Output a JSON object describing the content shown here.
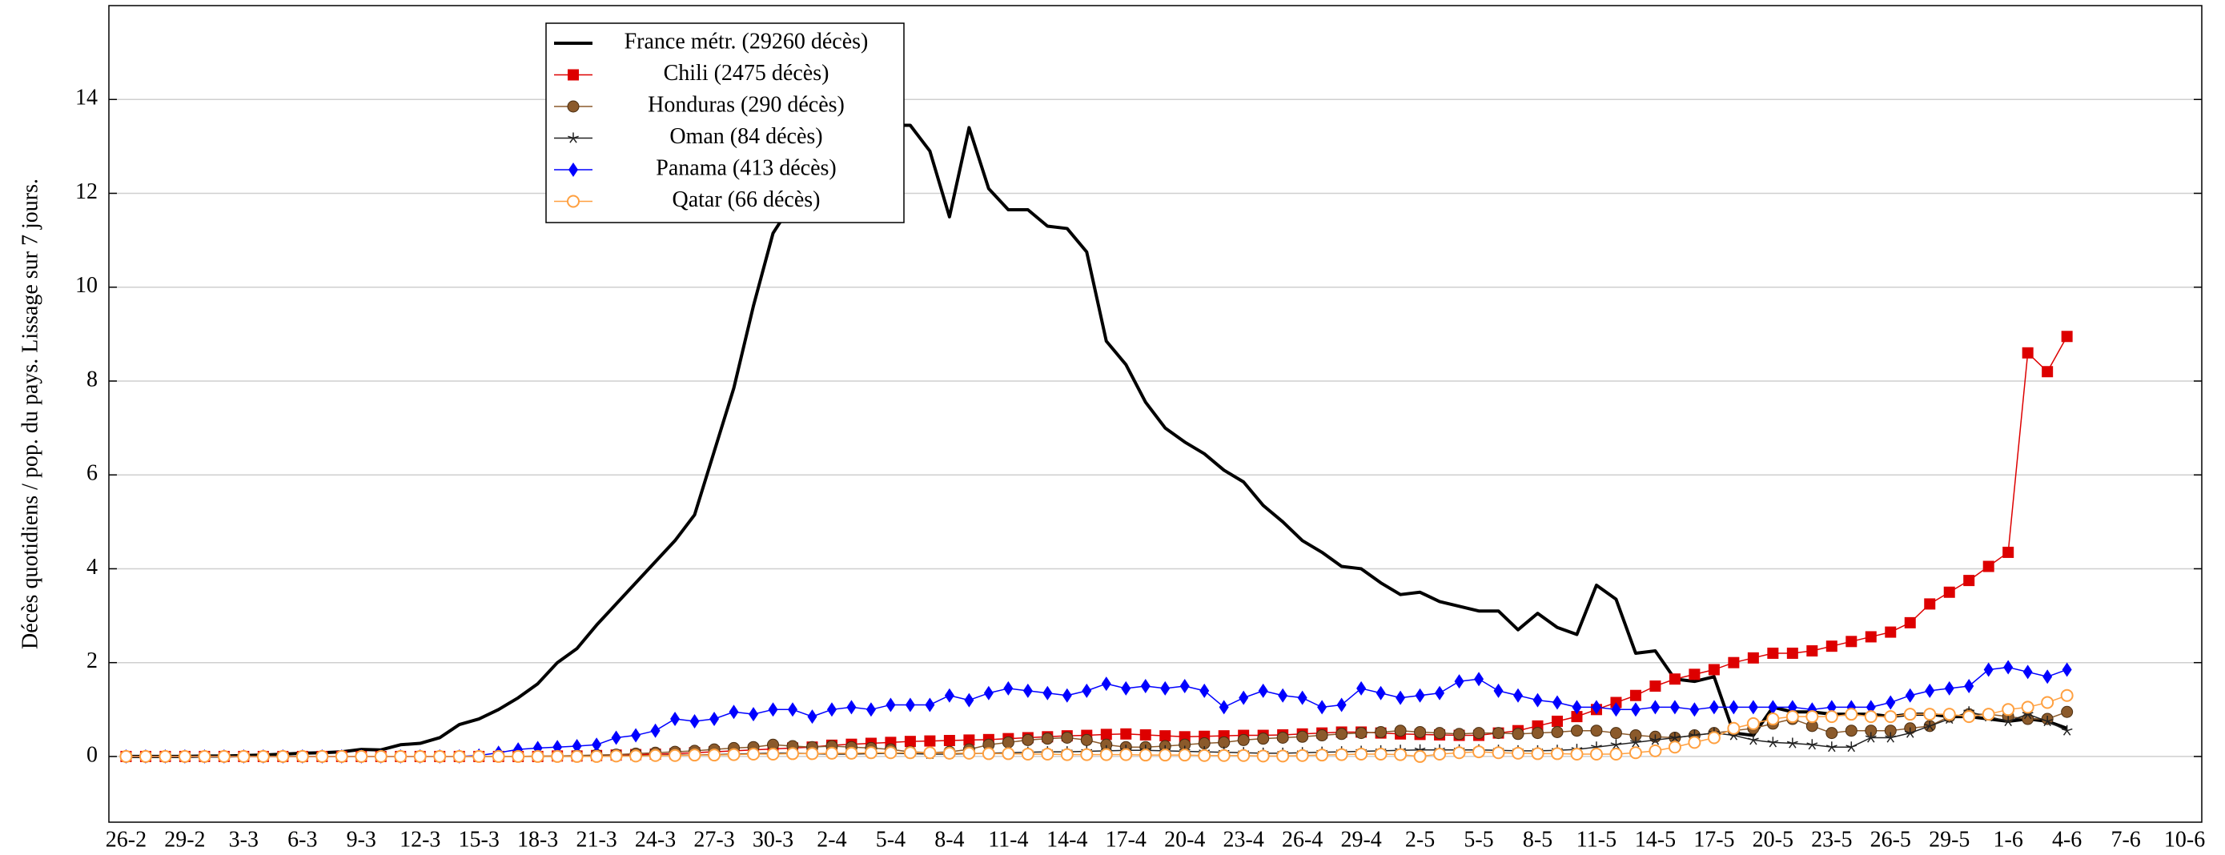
{
  "chart_data": {
    "type": "line",
    "y_label": "Décès quotidiens / pop. du pays. Lissage sur 7 jours.",
    "categories": [
      "26-2",
      null,
      null,
      "29-2",
      null,
      null,
      "3-3",
      null,
      null,
      "6-3",
      null,
      null,
      "9-3",
      null,
      null,
      "12-3",
      null,
      null,
      "15-3",
      null,
      null,
      "18-3",
      null,
      null,
      "21-3",
      null,
      null,
      "24-3",
      null,
      null,
      "27-3",
      null,
      null,
      "30-3",
      null,
      null,
      "2-4",
      null,
      null,
      "5-4",
      null,
      null,
      "8-4",
      null,
      null,
      "11-4",
      null,
      null,
      "14-4",
      null,
      null,
      "17-4",
      null,
      null,
      "20-4",
      null,
      null,
      "23-4",
      null,
      null,
      "26-4",
      null,
      null,
      "29-4",
      null,
      null,
      "2-5",
      null,
      null,
      "5-5",
      null,
      null,
      "8-5",
      null,
      null,
      "11-5",
      null,
      null,
      "14-5",
      null,
      null,
      "17-5",
      null,
      null,
      "20-5",
      null,
      null,
      "23-5",
      null,
      null,
      "26-5",
      null,
      null,
      "29-5",
      null,
      null,
      "1-6",
      null,
      null,
      "4-6",
      null,
      null,
      "7-6",
      null,
      null,
      "10-6"
    ],
    "ylim": [
      -1.4,
      16
    ],
    "yticks": [
      0,
      2,
      4,
      6,
      8,
      10,
      12,
      14
    ],
    "grid": true,
    "series": [
      {
        "name": "France métr. (29260 décès)",
        "color": "#000000",
        "marker": "none",
        "values": [
          0,
          0,
          0,
          0,
          0.01,
          0.01,
          0.02,
          0.03,
          0.05,
          0.07,
          0.08,
          0.1,
          0.15,
          0.14,
          0.25,
          0.28,
          0.4,
          0.68,
          0.8,
          1.0,
          1.25,
          1.55,
          2.0,
          2.3,
          2.8,
          3.25,
          3.7,
          4.15,
          4.6,
          5.15,
          6.5,
          7.85,
          9.6,
          11.15,
          11.8,
          12.3,
          12.8,
          13.2,
          13.4,
          13.45,
          13.45,
          12.9,
          11.5,
          13.4,
          12.1,
          11.65,
          11.65,
          11.3,
          11.25,
          10.75,
          8.85,
          8.35,
          7.55,
          7.0,
          6.7,
          6.45,
          6.1,
          5.85,
          5.35,
          5.0,
          4.6,
          4.35,
          4.05,
          4.0,
          3.7,
          3.45,
          3.5,
          3.3,
          3.2,
          3.1,
          3.1,
          2.7,
          3.05,
          2.75,
          2.6,
          3.65,
          3.35,
          2.2,
          2.25,
          1.65,
          1.6,
          1.7,
          0.5,
          0.45,
          1.05,
          0.95,
          0.95,
          0.9,
          0.9,
          0.9,
          0.85,
          0.9,
          0.9,
          0.85,
          0.85,
          0.8,
          0.75,
          0.8,
          0.75,
          0.6,
          null,
          null,
          null,
          null,
          null,
          null
        ]
      },
      {
        "name": "Chili (2475 décès)",
        "color": "#dd0000",
        "marker": "square",
        "values": [
          0,
          0,
          0,
          0,
          0,
          0,
          0,
          0,
          0,
          0,
          0,
          0,
          0,
          0,
          0,
          0,
          0,
          0,
          0,
          0,
          0,
          0,
          0.01,
          0.01,
          0.02,
          0.03,
          0.04,
          0.05,
          0.06,
          0.08,
          0.1,
          0.12,
          0.14,
          0.16,
          0.18,
          0.2,
          0.24,
          0.26,
          0.28,
          0.3,
          0.32,
          0.33,
          0.34,
          0.35,
          0.36,
          0.38,
          0.4,
          0.42,
          0.44,
          0.45,
          0.47,
          0.48,
          0.46,
          0.44,
          0.42,
          0.43,
          0.44,
          0.45,
          0.45,
          0.46,
          0.48,
          0.5,
          0.52,
          0.52,
          0.5,
          0.48,
          0.47,
          0.46,
          0.45,
          0.45,
          0.5,
          0.55,
          0.65,
          0.75,
          0.85,
          1.0,
          1.15,
          1.3,
          1.5,
          1.65,
          1.75,
          1.85,
          2.0,
          2.1,
          2.2,
          2.2,
          2.25,
          2.35,
          2.45,
          2.55,
          2.65,
          2.85,
          3.25,
          3.5,
          3.75,
          4.05,
          4.35,
          8.6,
          8.2,
          8.95,
          null,
          null,
          null,
          null,
          null,
          null
        ]
      },
      {
        "name": "Honduras (290 décès)",
        "color": "#8b5a2b",
        "marker": "circle",
        "values": [
          0,
          0,
          0,
          0,
          0,
          0,
          0,
          0,
          0,
          0,
          0,
          0,
          0,
          0,
          0,
          0,
          0,
          0,
          0,
          0,
          0,
          0.01,
          0.01,
          0.02,
          0.03,
          0.04,
          0.06,
          0.08,
          0.1,
          0.12,
          0.15,
          0.18,
          0.2,
          0.25,
          0.22,
          0.2,
          0.22,
          0.2,
          0.18,
          0.15,
          0.1,
          0.08,
          0.1,
          0.15,
          0.25,
          0.3,
          0.35,
          0.38,
          0.4,
          0.35,
          0.25,
          0.2,
          0.2,
          0.22,
          0.25,
          0.28,
          0.3,
          0.35,
          0.38,
          0.4,
          0.42,
          0.45,
          0.48,
          0.5,
          0.52,
          0.55,
          0.52,
          0.5,
          0.48,
          0.5,
          0.5,
          0.48,
          0.5,
          0.52,
          0.55,
          0.55,
          0.5,
          0.45,
          0.42,
          0.4,
          0.45,
          0.5,
          0.55,
          0.6,
          0.7,
          0.8,
          0.65,
          0.5,
          0.55,
          0.55,
          0.55,
          0.6,
          0.65,
          0.85,
          0.9,
          0.9,
          0.85,
          0.8,
          0.8,
          0.95,
          null,
          null,
          null,
          null,
          null,
          null
        ]
      },
      {
        "name": "Oman (84 décès)",
        "color": "#222222",
        "marker": "star",
        "values": [
          0,
          0,
          0,
          0,
          0,
          0,
          0,
          0,
          0,
          0,
          0,
          0,
          0,
          0,
          0,
          0,
          0,
          0,
          0,
          0,
          0,
          0,
          0,
          0,
          0.01,
          0.01,
          0.02,
          0.02,
          0.03,
          0.03,
          0.04,
          0.05,
          0.06,
          0.07,
          0.07,
          0.06,
          0.05,
          0.05,
          0.06,
          0.07,
          0.06,
          0.05,
          0.05,
          0.06,
          0.07,
          0.08,
          0.09,
          0.1,
          0.1,
          0.11,
          0.12,
          0.13,
          0.13,
          0.12,
          0.11,
          0.1,
          0.09,
          0.08,
          0.07,
          0.07,
          0.08,
          0.09,
          0.1,
          0.11,
          0.12,
          0.13,
          0.14,
          0.14,
          0.14,
          0.14,
          0.13,
          0.12,
          0.12,
          0.13,
          0.15,
          0.2,
          0.25,
          0.3,
          0.35,
          0.4,
          0.45,
          0.5,
          0.45,
          0.35,
          0.3,
          0.28,
          0.25,
          0.2,
          0.2,
          0.4,
          0.4,
          0.5,
          0.65,
          0.8,
          0.95,
          0.85,
          0.75,
          0.9,
          0.75,
          0.55,
          null,
          null,
          null,
          null,
          null,
          null
        ]
      },
      {
        "name": "Panama (413 décès)",
        "color": "#0000ff",
        "marker": "diamond",
        "values": [
          0,
          0,
          0,
          0,
          0,
          0,
          0,
          0,
          0,
          0,
          0,
          0,
          0,
          0,
          0,
          0,
          0,
          0,
          0.02,
          0.08,
          0.15,
          0.18,
          0.2,
          0.22,
          0.25,
          0.4,
          0.45,
          0.55,
          0.8,
          0.75,
          0.8,
          0.95,
          0.9,
          1.0,
          1.0,
          0.85,
          1.0,
          1.05,
          1.0,
          1.1,
          1.1,
          1.1,
          1.3,
          1.2,
          1.35,
          1.45,
          1.4,
          1.35,
          1.3,
          1.4,
          1.55,
          1.45,
          1.5,
          1.45,
          1.5,
          1.4,
          1.05,
          1.25,
          1.4,
          1.3,
          1.25,
          1.05,
          1.1,
          1.45,
          1.35,
          1.25,
          1.3,
          1.35,
          1.6,
          1.65,
          1.4,
          1.3,
          1.2,
          1.15,
          1.05,
          1.05,
          1.0,
          1.0,
          1.05,
          1.05,
          1.0,
          1.05,
          1.05,
          1.05,
          1.05,
          1.05,
          1.0,
          1.05,
          1.05,
          1.05,
          1.15,
          1.3,
          1.4,
          1.45,
          1.5,
          1.85,
          1.9,
          1.8,
          1.7,
          1.85,
          null,
          null,
          null,
          null,
          null,
          null
        ]
      },
      {
        "name": "Qatar (66 décès)",
        "color": "#ffa040",
        "marker": "open-circle",
        "values": [
          0,
          0,
          0,
          0,
          0,
          0,
          0,
          0,
          0,
          0,
          0,
          0,
          0,
          0,
          0,
          0,
          0,
          0,
          0,
          0,
          0,
          0,
          0,
          0,
          0,
          0.01,
          0.01,
          0.02,
          0.02,
          0.03,
          0.03,
          0.04,
          0.05,
          0.05,
          0.06,
          0.06,
          0.07,
          0.07,
          0.08,
          0.08,
          0.08,
          0.08,
          0.07,
          0.07,
          0.06,
          0.06,
          0.05,
          0.05,
          0.04,
          0.04,
          0.04,
          0.04,
          0.03,
          0.03,
          0.03,
          0.02,
          0.02,
          0.02,
          0.01,
          0.01,
          0.02,
          0.03,
          0.04,
          0.05,
          0.05,
          0.04,
          0.0,
          0.05,
          0.08,
          0.1,
          0.08,
          0.07,
          0.06,
          0.06,
          0.05,
          0.05,
          0.05,
          0.08,
          0.12,
          0.2,
          0.3,
          0.4,
          0.6,
          0.7,
          0.8,
          0.85,
          0.85,
          0.85,
          0.9,
          0.85,
          0.85,
          0.9,
          0.9,
          0.9,
          0.85,
          0.9,
          1.0,
          1.05,
          1.15,
          1.3,
          null,
          null,
          null,
          null,
          null,
          null
        ]
      }
    ]
  }
}
